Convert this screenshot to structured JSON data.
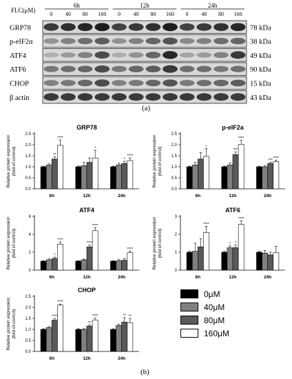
{
  "blot": {
    "concentration_label": "FLC(μM)",
    "timepoints": [
      "6h",
      "12h",
      "24h"
    ],
    "doses": [
      "0",
      "40",
      "80",
      "160"
    ],
    "proteins": [
      {
        "name": "GRP78",
        "mw": "78 kDa",
        "intensity": [
          0.85,
          0.9,
          0.95,
          1.0,
          0.8,
          0.85,
          0.9,
          1.0,
          0.8,
          0.85,
          0.9,
          0.95
        ]
      },
      {
        "name": "p-eIF2α",
        "mw": "38 kDa",
        "intensity": [
          0.35,
          0.45,
          0.55,
          0.65,
          0.35,
          0.45,
          0.6,
          0.7,
          0.4,
          0.45,
          0.55,
          0.6
        ]
      },
      {
        "name": "ATF4",
        "mw": "49 kDa",
        "intensity": [
          0.2,
          0.3,
          0.45,
          0.75,
          0.2,
          0.35,
          0.6,
          0.95,
          0.25,
          0.3,
          0.45,
          0.85
        ]
      },
      {
        "name": "ATF6",
        "mw": "90 kDa",
        "intensity": [
          0.5,
          0.55,
          0.6,
          0.75,
          0.5,
          0.6,
          0.65,
          0.85,
          0.55,
          0.55,
          0.5,
          0.55
        ]
      },
      {
        "name": "CHOP",
        "mw": "15 kDa",
        "intensity": [
          0.45,
          0.5,
          0.6,
          0.75,
          0.45,
          0.5,
          0.6,
          0.7,
          0.5,
          0.55,
          0.6,
          0.65
        ]
      },
      {
        "name": "β actin",
        "mw": "43 kDa",
        "intensity": [
          0.85,
          0.85,
          0.85,
          0.85,
          0.85,
          0.85,
          0.85,
          0.85,
          0.85,
          0.85,
          0.85,
          0.85
        ]
      }
    ]
  },
  "labels": {
    "panel_a": "(a)",
    "panel_b": "(b)"
  },
  "legend": {
    "items": [
      {
        "label": "0μM",
        "color": "#000000"
      },
      {
        "label": "40μM",
        "color": "#808080"
      },
      {
        "label": "80μM",
        "color": "#5a5a5a"
      },
      {
        "label": "160μM",
        "color": "#ffffff"
      }
    ]
  },
  "chart_data": [
    {
      "type": "bar",
      "title": "GRP78",
      "ylabel": "Relative protein expression (fold of control)",
      "categories": [
        "6h",
        "12h",
        "24h"
      ],
      "ylim": [
        0,
        2.5
      ],
      "yticks": [
        0.0,
        0.5,
        1.0,
        1.5,
        2.0,
        2.5
      ],
      "series": [
        {
          "name": "0μM",
          "values": [
            1.0,
            1.0,
            1.0
          ],
          "errors": [
            0.03,
            0.03,
            0.03
          ],
          "sig": [
            "",
            "",
            ""
          ]
        },
        {
          "name": "40μM",
          "values": [
            1.08,
            1.05,
            1.08
          ],
          "errors": [
            0.05,
            0.15,
            0.08
          ],
          "sig": [
            "",
            "",
            ""
          ]
        },
        {
          "name": "80μM",
          "values": [
            1.35,
            1.2,
            1.15
          ],
          "errors": [
            0.1,
            0.2,
            0.1
          ],
          "sig": [
            "**",
            "",
            "*"
          ]
        },
        {
          "name": "160μM",
          "values": [
            1.97,
            1.4,
            1.28
          ],
          "errors": [
            0.25,
            0.35,
            0.12
          ],
          "sig": [
            "****",
            "*",
            "****"
          ]
        }
      ]
    },
    {
      "type": "bar",
      "title": "p-eIF2a",
      "ylabel": "Relative protein expression (fold of control)",
      "categories": [
        "6h",
        "12h",
        "24h"
      ],
      "ylim": [
        0,
        2.5
      ],
      "yticks": [
        0.0,
        0.5,
        1.0,
        1.5,
        2.0,
        2.5
      ],
      "series": [
        {
          "name": "0μM",
          "values": [
            1.0,
            1.0,
            1.0
          ],
          "errors": [
            0.03,
            0.03,
            0.03
          ],
          "sig": [
            "",
            "",
            ""
          ]
        },
        {
          "name": "40μM",
          "values": [
            1.08,
            1.08,
            1.0
          ],
          "errors": [
            0.12,
            0.1,
            0.05
          ],
          "sig": [
            "",
            "",
            ""
          ]
        },
        {
          "name": "80μM",
          "values": [
            1.35,
            1.55,
            1.15
          ],
          "errors": [
            0.3,
            0.12,
            0.05
          ],
          "sig": [
            "",
            "***",
            "***"
          ]
        },
        {
          "name": "160μM",
          "values": [
            1.47,
            2.02,
            1.23
          ],
          "errors": [
            0.35,
            0.18,
            0.07
          ],
          "sig": [
            "*",
            "****",
            "****"
          ]
        }
      ]
    },
    {
      "type": "bar",
      "title": "ATF4",
      "ylabel": "Relative protein expression (fold of control)",
      "categories": [
        "6h",
        "12h",
        "24h"
      ],
      "ylim": [
        0,
        6
      ],
      "yticks": [
        0,
        2,
        4,
        6
      ],
      "series": [
        {
          "name": "0μM",
          "values": [
            1.0,
            1.0,
            1.0
          ],
          "errors": [
            0.05,
            0.05,
            0.05
          ],
          "sig": [
            "",
            "",
            ""
          ]
        },
        {
          "name": "40μM",
          "values": [
            1.15,
            1.15,
            1.05
          ],
          "errors": [
            0.1,
            0.08,
            0.15
          ],
          "sig": [
            "",
            "",
            ""
          ]
        },
        {
          "name": "80μM",
          "values": [
            1.3,
            2.6,
            1.1
          ],
          "errors": [
            0.15,
            0.2,
            0.2
          ],
          "sig": [
            "*",
            "****",
            ""
          ]
        },
        {
          "name": "160μM",
          "values": [
            2.9,
            4.4,
            1.95
          ],
          "errors": [
            0.25,
            0.35,
            0.15
          ],
          "sig": [
            "****",
            "****",
            "****"
          ]
        }
      ]
    },
    {
      "type": "bar",
      "title": "ATF6",
      "ylabel": "Relative protein expression (fold of control)",
      "categories": [
        "6h",
        "12h",
        "24h"
      ],
      "ylim": [
        0,
        3
      ],
      "yticks": [
        0,
        1,
        2,
        3
      ],
      "series": [
        {
          "name": "0μM",
          "values": [
            1.0,
            1.0,
            1.0
          ],
          "errors": [
            0.05,
            0.05,
            0.05
          ],
          "sig": [
            "",
            "",
            ""
          ]
        },
        {
          "name": "40μM",
          "values": [
            1.05,
            1.25,
            0.95
          ],
          "errors": [
            0.45,
            0.1,
            0.15
          ],
          "sig": [
            "",
            "*",
            ""
          ]
        },
        {
          "name": "80μM",
          "values": [
            1.3,
            1.25,
            0.85
          ],
          "errors": [
            0.45,
            0.15,
            0.15
          ],
          "sig": [
            "",
            "*",
            ""
          ]
        },
        {
          "name": "160μM",
          "values": [
            2.1,
            2.55,
            0.97
          ],
          "errors": [
            0.35,
            0.2,
            0.35
          ],
          "sig": [
            "****",
            "****",
            ""
          ]
        }
      ]
    },
    {
      "type": "bar",
      "title": "CHOP",
      "ylabel": "Relative protein expression (fold of control)",
      "categories": [
        "6h",
        "12h",
        "24h"
      ],
      "ylim": [
        0,
        2.5
      ],
      "yticks": [
        0.0,
        0.5,
        1.0,
        1.5,
        2.0,
        2.5
      ],
      "series": [
        {
          "name": "0μM",
          "values": [
            1.0,
            1.0,
            1.0
          ],
          "errors": [
            0.03,
            0.03,
            0.03
          ],
          "sig": [
            "",
            "",
            ""
          ]
        },
        {
          "name": "40μM",
          "values": [
            1.08,
            1.0,
            1.18
          ],
          "errors": [
            0.05,
            0.03,
            0.05
          ],
          "sig": [
            "",
            "",
            ""
          ]
        },
        {
          "name": "80μM",
          "values": [
            1.42,
            1.15,
            1.33
          ],
          "errors": [
            0.08,
            0.05,
            0.2
          ],
          "sig": [
            "****",
            "**",
            "**"
          ]
        },
        {
          "name": "160μM",
          "values": [
            2.1,
            1.43,
            1.3
          ],
          "errors": [
            0.05,
            0.08,
            0.2
          ],
          "sig": [
            "****",
            "****",
            "**"
          ]
        }
      ]
    }
  ]
}
